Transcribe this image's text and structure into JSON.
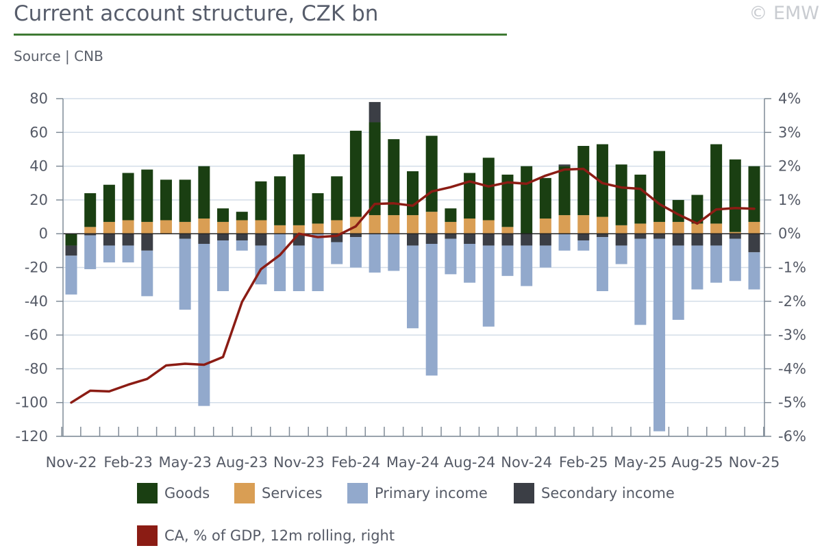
{
  "header": {
    "title": "Current account structure, CZK bn",
    "source": "Source | CNB",
    "copyright": "© EMW"
  },
  "colors": {
    "goods": "#1a3f12",
    "services": "#d99e54",
    "primary": "#92a9cc",
    "secondary": "#3b3e45",
    "ca": "#8b1c14",
    "grid": "#d3dde8",
    "axis": "#7f8a96",
    "rule": "#3e7a33"
  },
  "chart_data": {
    "type": "bar",
    "stacked": true,
    "x": [
      "Nov-22",
      "Dec-22",
      "Jan-23",
      "Feb-23",
      "Mar-23",
      "Apr-23",
      "May-23",
      "Jun-23",
      "Jul-23",
      "Aug-23",
      "Sep-23",
      "Oct-23",
      "Nov-23",
      "Dec-23",
      "Jan-24",
      "Feb-24",
      "Mar-24",
      "Apr-24",
      "May-24",
      "Jun-24",
      "Jul-24",
      "Aug-24",
      "Sep-24",
      "Oct-24",
      "Nov-24",
      "Dec-24",
      "Jan-25",
      "Feb-25",
      "Mar-25",
      "Apr-25",
      "May-25",
      "Jun-25",
      "Jul-25",
      "Aug-25",
      "Sep-25",
      "Oct-25",
      "Nov-25"
    ],
    "tick_labels": [
      "Nov-22",
      "Feb-23",
      "May-23",
      "Aug-23",
      "Nov-23",
      "Feb-24",
      "May-24",
      "Aug-24",
      "Nov-24",
      "Feb-25",
      "May-25",
      "Aug-25",
      "Nov-25"
    ],
    "series": [
      {
        "name": "Goods",
        "axis": "left",
        "values": [
          -7,
          20,
          22,
          28,
          31,
          24,
          25,
          31,
          8,
          5,
          23,
          29,
          42,
          18,
          26,
          51,
          55,
          45,
          26,
          45,
          8,
          27,
          37,
          31,
          40,
          24,
          29,
          41,
          43,
          36,
          29,
          42,
          13,
          17,
          47,
          43,
          33
        ]
      },
      {
        "name": "Services",
        "axis": "left",
        "values": [
          0,
          4,
          7,
          8,
          7,
          8,
          7,
          9,
          7,
          8,
          8,
          5,
          5,
          6,
          8,
          10,
          11,
          11,
          11,
          13,
          7,
          9,
          8,
          4,
          0,
          9,
          11,
          11,
          10,
          5,
          6,
          7,
          7,
          6,
          6,
          1,
          7
        ]
      },
      {
        "name": "Primary income",
        "axis": "left",
        "values": [
          -23,
          -20,
          -10,
          -10,
          -27,
          0,
          -42,
          -96,
          -30,
          -6,
          -23,
          -34,
          -27,
          -34,
          -13,
          -18,
          -23,
          -22,
          -49,
          -78,
          -21,
          -23,
          -48,
          -18,
          -24,
          -13,
          -10,
          -6,
          -32,
          -11,
          -51,
          -114,
          -44,
          -26,
          -22,
          -25,
          -22
        ]
      },
      {
        "name": "Secondary income",
        "axis": "left",
        "values": [
          -6,
          -1,
          -7,
          -7,
          -10,
          0,
          -3,
          -6,
          -4,
          -4,
          -7,
          0,
          -7,
          0,
          -5,
          -2,
          12,
          0,
          -7,
          -6,
          -3,
          -6,
          -7,
          -7,
          -7,
          -7,
          1,
          -4,
          -2,
          -7,
          -3,
          -3,
          -7,
          -7,
          -7,
          -3,
          -11
        ]
      },
      {
        "name": "CA, % of GDP, 12m rolling, right",
        "type": "line",
        "axis": "right",
        "values": [
          -5.0,
          -4.65,
          -4.67,
          -4.47,
          -4.3,
          -3.9,
          -3.85,
          -3.88,
          -3.65,
          -2.02,
          -1.05,
          -0.63,
          0.0,
          -0.1,
          -0.06,
          0.22,
          0.88,
          0.9,
          0.83,
          1.25,
          1.38,
          1.55,
          1.4,
          1.52,
          1.48,
          1.72,
          1.9,
          1.92,
          1.5,
          1.37,
          1.33,
          0.88,
          0.57,
          0.3,
          0.72,
          0.76,
          0.74
        ]
      }
    ],
    "y_left": {
      "min": -120,
      "max": 80,
      "ticks": [
        80,
        60,
        40,
        20,
        0,
        -20,
        -40,
        -60,
        -80,
        -100,
        -120
      ]
    },
    "y_right": {
      "min": -6,
      "max": 4,
      "ticks": [
        "4%",
        "3%",
        "2%",
        "1%",
        "0%",
        "-1%",
        "-2%",
        "-3%",
        "-4%",
        "-5%",
        "-6%"
      ]
    },
    "grid": true,
    "legend_position": "bottom"
  },
  "legend": [
    {
      "key": "goods",
      "label": "Goods"
    },
    {
      "key": "services",
      "label": "Services"
    },
    {
      "key": "primary",
      "label": "Primary income"
    },
    {
      "key": "secondary",
      "label": "Secondary income"
    },
    {
      "key": "ca",
      "label": "CA, % of GDP, 12m rolling, right"
    }
  ]
}
